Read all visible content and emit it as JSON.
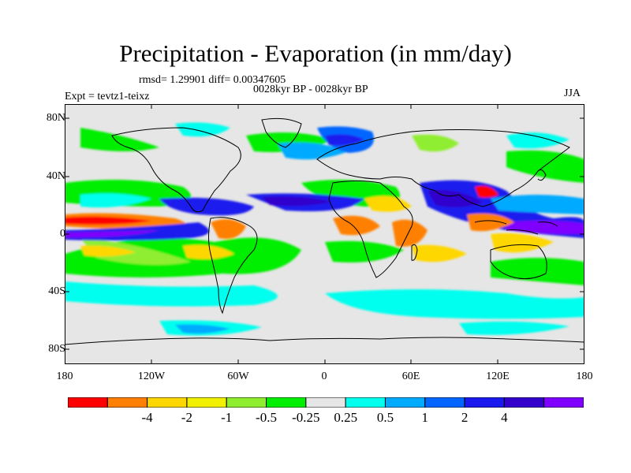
{
  "title": "Precipitation - Evaporation (in mm/day)",
  "stats": "rmsd= 1.29901 diff= 0.00347605",
  "period": "0028kyr BP - 0028kyr BP",
  "experiment": "Expt = tevtz1-teixz",
  "season": "JJA",
  "lat_labels": [
    "80N",
    "40N",
    "0",
    "40S",
    "80S"
  ],
  "lon_labels": [
    "180",
    "120W",
    "60W",
    "0",
    "60E",
    "120E",
    "180"
  ],
  "colorbar": {
    "labels": [
      "-4",
      "-2",
      "-1",
      "-0.5",
      "-0.25",
      "0.25",
      "0.5",
      "1",
      "2",
      "4"
    ],
    "colors": [
      "#ff0000",
      "#ff8000",
      "#ffd700",
      "#f0f000",
      "#90ee30",
      "#00ee00",
      "#e6e6e6",
      "#00ffee",
      "#00aaff",
      "#0066ff",
      "#1a1aee",
      "#3300cc",
      "#8000ff"
    ]
  }
}
